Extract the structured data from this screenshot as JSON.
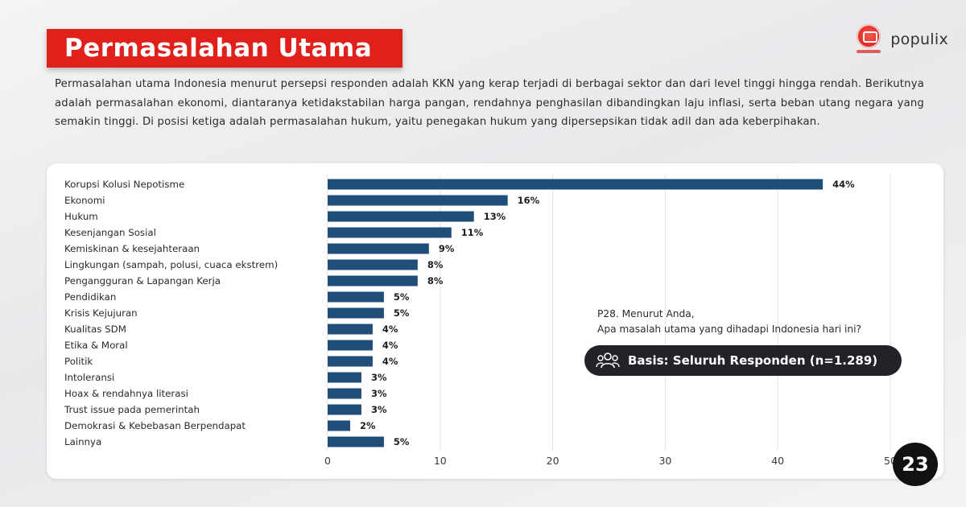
{
  "header": {
    "title": "Permasalahan Utama",
    "brand": "populix"
  },
  "intro_text": "Permasalahan utama Indonesia menurut persepsi responden adalah KKN yang kerap terjadi di berbagai sektor dan dari level tinggi hingga rendah. Berikutnya adalah permasalahan ekonomi, diantaranya ketidakstabilan harga pangan, rendahnya penghasilan dibandingkan laju inflasi, serta beban utang negara yang semakin tinggi. Di posisi ketiga adalah permasalahan hukum, yaitu penegakan hukum yang dipersepsikan tidak adil dan ada keberpihakan.",
  "question": {
    "line1": "P28. Menurut Anda,",
    "line2": "Apa masalah utama yang dihadapi Indonesia hari ini?"
  },
  "basis": {
    "icon": "people-icon",
    "label": "Basis: Seluruh Responden (n=1.289)"
  },
  "page_number": "23",
  "colors": {
    "accent": "#e0201b",
    "bar": "#1f4e79",
    "pill": "#222327"
  },
  "chart_data": {
    "type": "bar",
    "orientation": "horizontal",
    "categories": [
      "Korupsi Kolusi Nepotisme",
      "Ekonomi",
      "Hukum",
      "Kesenjangan Sosial",
      "Kemiskinan & kesejahteraan",
      "Lingkungan (sampah, polusi, cuaca ekstrem)",
      "Pengangguran & Lapangan Kerja",
      "Pendidikan",
      "Krisis Kejujuran",
      "Kualitas SDM",
      "Etika & Moral",
      "Politik",
      "Intoleransi",
      "Hoax & rendahnya literasi",
      "Trust issue pada pemerintah",
      "Demokrasi & Kebebasan Berpendapat",
      "Lainnya"
    ],
    "values": [
      44,
      16,
      13,
      11,
      9,
      8,
      8,
      5,
      5,
      4,
      4,
      4,
      3,
      3,
      3,
      2,
      5
    ],
    "value_labels": [
      "44%",
      "16%",
      "13%",
      "11%",
      "9%",
      "8%",
      "8%",
      "5%",
      "5%",
      "4%",
      "4%",
      "4%",
      "3%",
      "3%",
      "3%",
      "2%",
      "5%"
    ],
    "xlim": [
      0,
      50
    ],
    "xticks": [
      0,
      10,
      20,
      30,
      40,
      50
    ],
    "xtick_labels": [
      "0",
      "10",
      "20",
      "30",
      "40",
      "50"
    ],
    "grid": true
  }
}
